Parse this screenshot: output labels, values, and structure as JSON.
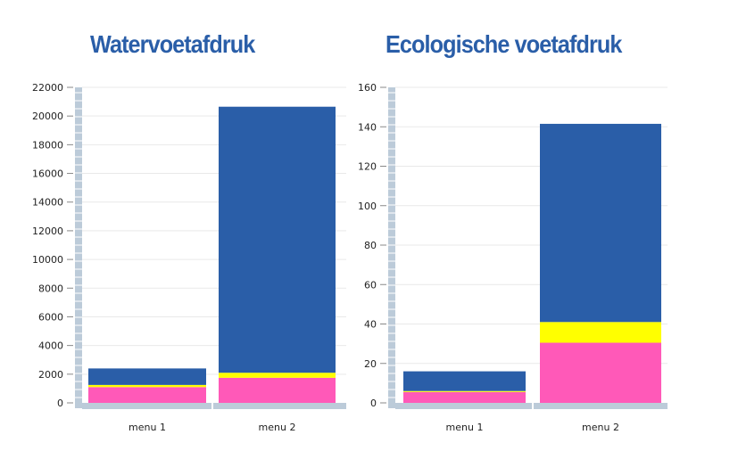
{
  "colors": {
    "blue": "#2a5ea8",
    "yellow": "#ffff00",
    "pink": "#ff59b8",
    "axis": "#bccbd9",
    "grid": "#e9e9e9"
  },
  "chart_data": [
    {
      "type": "bar",
      "stacked": true,
      "title": "Watervoetafdruk",
      "xlabel": "",
      "ylabel": "",
      "categories": [
        "menu 1",
        "menu 2"
      ],
      "ylim": [
        0,
        22000
      ],
      "yticks": [
        "0",
        "2000",
        "4000",
        "6000",
        "8000",
        "10000",
        "12000",
        "14000",
        "16000",
        "18000",
        "20000",
        "22000"
      ],
      "grid": true,
      "series": [
        {
          "name": "pink",
          "color": "#ff59b8",
          "values": [
            1100,
            1750
          ]
        },
        {
          "name": "yellow",
          "color": "#ffff00",
          "values": [
            150,
            350
          ]
        },
        {
          "name": "blue",
          "color": "#2a5ea8",
          "values": [
            1150,
            18550
          ]
        }
      ]
    },
    {
      "type": "bar",
      "stacked": true,
      "title": "Ecologische voetafdruk",
      "xlabel": "",
      "ylabel": "",
      "categories": [
        "menu 1",
        "menu 2"
      ],
      "ylim": [
        0,
        160
      ],
      "yticks": [
        "0",
        "20",
        "40",
        "60",
        "80",
        "100",
        "120",
        "140",
        "160"
      ],
      "grid": true,
      "series": [
        {
          "name": "pink",
          "color": "#ff59b8",
          "values": [
            5.5,
            30.5
          ]
        },
        {
          "name": "yellow",
          "color": "#ffff00",
          "values": [
            0.5,
            10.5
          ]
        },
        {
          "name": "blue",
          "color": "#2a5ea8",
          "values": [
            10,
            100.5
          ]
        }
      ]
    }
  ]
}
